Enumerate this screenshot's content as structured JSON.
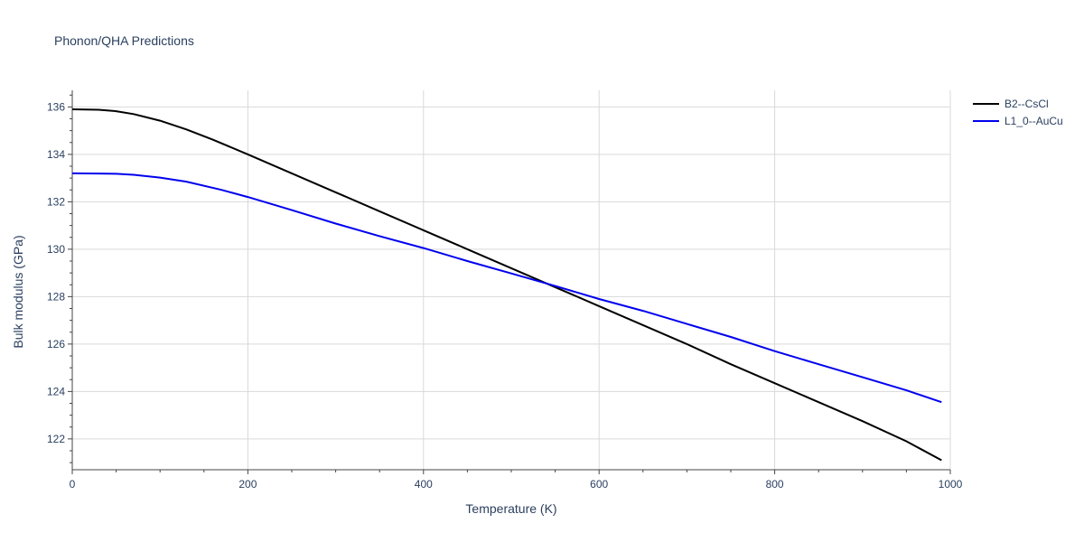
{
  "chart_data": {
    "type": "line",
    "title": "Phonon/QHA Predictions",
    "xlabel": "Temperature (K)",
    "ylabel": "Bulk modulus (GPa)",
    "xlim": [
      0,
      1000
    ],
    "ylim": [
      120.7,
      136.7
    ],
    "xticks": [
      0,
      200,
      400,
      600,
      800,
      1000
    ],
    "xtick_labels": [
      "0",
      "200",
      "400",
      "600",
      "800",
      "1000"
    ],
    "yticks": [
      122,
      124,
      126,
      128,
      130,
      132,
      134,
      136
    ],
    "ytick_labels": [
      "122",
      "124",
      "126",
      "128",
      "130",
      "132",
      "134",
      "136"
    ],
    "grid": true,
    "legend_position": "top-right",
    "series": [
      {
        "name": "B2--CsCl",
        "color": "#000000",
        "x": [
          0,
          30,
          50,
          70,
          100,
          130,
          160,
          200,
          250,
          300,
          350,
          400,
          450,
          500,
          550,
          600,
          650,
          700,
          750,
          800,
          850,
          900,
          950,
          990
        ],
        "y": [
          135.9,
          135.88,
          135.82,
          135.7,
          135.42,
          135.05,
          134.62,
          134.0,
          133.2,
          132.4,
          131.6,
          130.8,
          130.0,
          129.2,
          128.4,
          127.6,
          126.8,
          126.0,
          125.15,
          124.35,
          123.55,
          122.75,
          121.9,
          121.1
        ]
      },
      {
        "name": "L1_0--AuCu",
        "color": "#0000ee",
        "x": [
          0,
          30,
          50,
          70,
          100,
          130,
          170,
          200,
          250,
          300,
          350,
          400,
          450,
          500,
          550,
          600,
          650,
          700,
          750,
          800,
          850,
          900,
          950,
          990
        ],
        "y": [
          133.2,
          133.19,
          133.18,
          133.14,
          133.02,
          132.85,
          132.5,
          132.2,
          131.65,
          131.08,
          130.55,
          130.05,
          129.5,
          128.98,
          128.45,
          127.9,
          127.4,
          126.85,
          126.3,
          125.7,
          125.15,
          124.6,
          124.05,
          123.55
        ]
      }
    ]
  }
}
